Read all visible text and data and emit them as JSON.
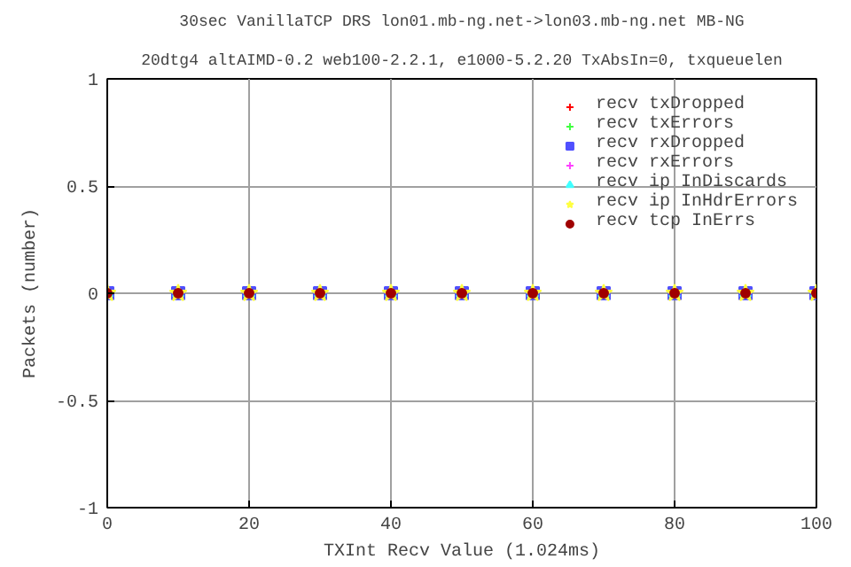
{
  "chart_data": {
    "type": "scatter",
    "title": "30sec VanillaTCP DRS lon01.mb-ng.net->lon03.mb-ng.net MB-NG",
    "subtitle": "20dtg4 altAIMD-0.2 web100-2.2.1, e1000-5.2.20 TxAbsIn=0, txqueuelen",
    "xlabel": "TXInt Recv Value (1.024ms)",
    "ylabel": "Packets (number)",
    "x": [
      0,
      10,
      20,
      30,
      40,
      50,
      60,
      70,
      80,
      90,
      100
    ],
    "series": [
      {
        "name": "recv txDropped",
        "color": "#ff0000",
        "marker": "cross",
        "values": [
          null,
          null,
          null,
          null,
          null,
          null,
          null,
          null,
          null,
          null,
          null
        ]
      },
      {
        "name": "recv txErrors",
        "color": "#40ff40",
        "marker": "cross",
        "values": [
          null,
          null,
          null,
          null,
          null,
          null,
          null,
          null,
          null,
          null,
          null
        ]
      },
      {
        "name": "recv rxDropped",
        "color": "#5050ff",
        "marker": "square",
        "values": [
          0,
          0,
          0,
          0,
          0,
          0,
          0,
          0,
          0,
          0,
          0
        ]
      },
      {
        "name": "recv rxErrors",
        "color": "#ff40ff",
        "marker": "cross",
        "values": [
          null,
          null,
          null,
          null,
          null,
          null,
          null,
          null,
          null,
          null,
          null
        ]
      },
      {
        "name": "recv ip InDiscards",
        "color": "#40ffff",
        "marker": "triangle",
        "values": [
          0,
          0,
          0,
          0,
          0,
          0,
          0,
          0,
          0,
          0,
          0
        ]
      },
      {
        "name": "recv ip InHdrErrors",
        "color": "#ffff40",
        "marker": "star",
        "values": [
          0,
          0,
          0,
          0,
          0,
          0,
          0,
          0,
          0,
          0,
          0
        ]
      },
      {
        "name": "recv tcp InErrs",
        "color": "#a00000",
        "marker": "circle",
        "values": [
          0,
          0,
          0,
          0,
          0,
          0,
          0,
          0,
          0,
          0,
          0
        ]
      }
    ],
    "xlim": [
      0,
      100
    ],
    "xticks": [
      0,
      20,
      40,
      60,
      80,
      100
    ],
    "ylim": [
      -1,
      1
    ],
    "yticks": [
      -1,
      -0.5,
      0,
      0.5,
      1
    ],
    "grid": true,
    "legend": "top right"
  }
}
